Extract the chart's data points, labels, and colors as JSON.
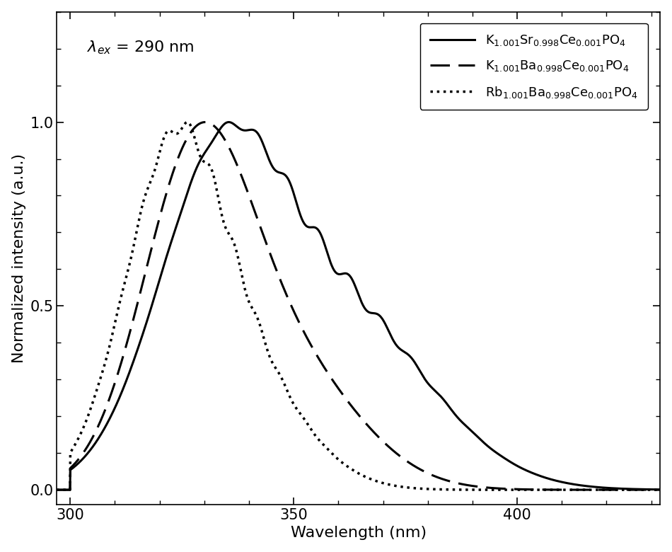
{
  "xlabel": "Wavelength (nm)",
  "ylabel": "Normalized intensity (a.u.)",
  "xlim": [
    297,
    432
  ],
  "ylim": [
    -0.04,
    1.3
  ],
  "xticks": [
    300,
    350,
    400
  ],
  "yticks": [
    0.0,
    0.5,
    1.0
  ],
  "label_fontsize": 16,
  "tick_fontsize": 15,
  "legend_fontsize": 13,
  "annotation_fontsize": 16,
  "background_color": "white"
}
